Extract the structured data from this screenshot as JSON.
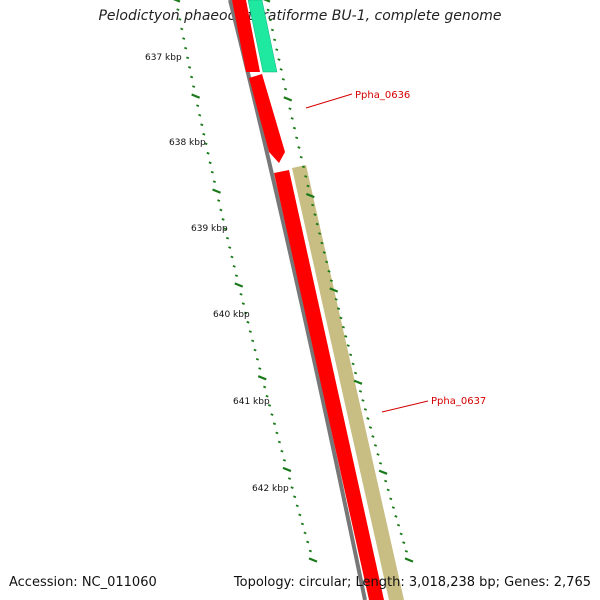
{
  "title": "Pelodictyon phaeoclathratiforme BU-1, complete genome",
  "accession_text": "Accession: NC_011060",
  "topology_text": "Topology: circular; Length: 3,018,238 bp; Genes: 2,765",
  "scale_labels": [
    "637 kbp",
    "638 kbp",
    "639 kbp",
    "640 kbp",
    "641 kbp",
    "642 kbp"
  ],
  "gene_labels": [
    "Ppha_0636",
    "Ppha_0637"
  ],
  "colors": {
    "backbone": "#777777",
    "cds_red": "#ff0000",
    "cds_teal": "#1fe8a0",
    "cds_tan": "#c8bd82",
    "tick": "#1a7a1a",
    "label_line": "#d40000"
  }
}
